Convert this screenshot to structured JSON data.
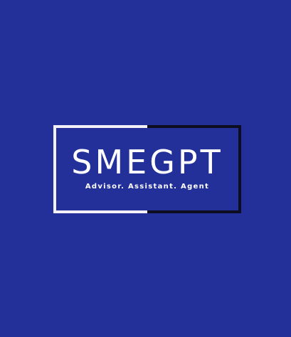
{
  "logo": {
    "name": "SMEGPT",
    "tagline": "Advisor. Assistant. Agent"
  },
  "colors": {
    "background": "#23309a",
    "frame_light": "#f3f1f7",
    "frame_dark": "#0c0d1e",
    "text": "#ffffff"
  }
}
